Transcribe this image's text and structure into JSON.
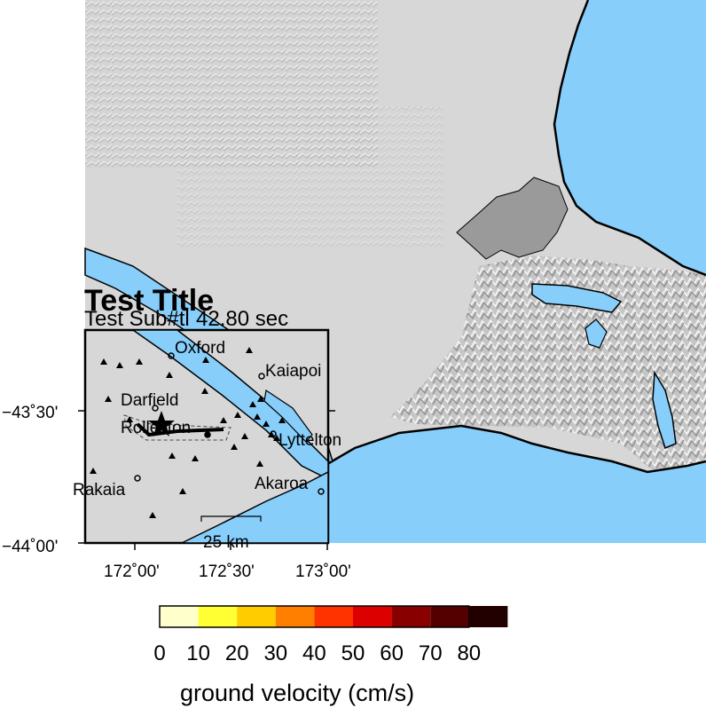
{
  "map": {
    "title": "Test Title",
    "subtitle": "Test Sub#tl",
    "time_label": "42.80 sec",
    "scale_bar_label": "25 km",
    "colors": {
      "land": "#d7d7d7",
      "sea": "#87cefa",
      "urban": "#9a9a9a",
      "frame": "#000000"
    },
    "lat_ticks": [
      "−43˚30'",
      "−44˚00'"
    ],
    "lon_ticks": [
      "172˚00'",
      "172˚30'",
      "173˚00'"
    ],
    "places": [
      "Oxford",
      "Kaiapoi",
      "Darfield",
      "Rolleston",
      "Lyttelton",
      "Akaroa",
      "Rakaia"
    ]
  },
  "colorbar": {
    "title": "ground velocity (cm/s)",
    "ticks": [
      "0",
      "10",
      "20",
      "30",
      "40",
      "50",
      "60",
      "70",
      "80"
    ],
    "colors": [
      "#ffffcc",
      "#ffff33",
      "#ffcc00",
      "#ff8000",
      "#ff3300",
      "#dd0000",
      "#880000",
      "#550000",
      "#220000"
    ]
  }
}
